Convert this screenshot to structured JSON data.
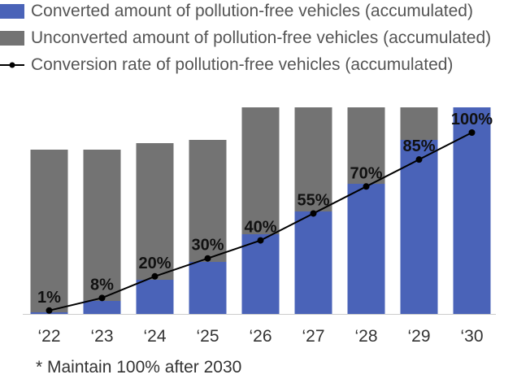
{
  "legend": {
    "converted": "Converted amount of pollution-free vehicles (accumulated)",
    "unconverted": "Unconverted amount of pollution-free vehicles (accumulated)",
    "rate": "Conversion rate of pollution-free vehicles (accumulated)"
  },
  "footnote": "* Maintain 100% after 2030",
  "colors": {
    "converted": "#4a63b8",
    "unconverted": "#737373",
    "line": "#000000"
  },
  "chart_data": {
    "type": "bar",
    "stacked": true,
    "categories": [
      "‘22",
      "‘23",
      "‘24",
      "‘25",
      "‘26",
      "‘27",
      "‘28",
      "‘29",
      "‘30"
    ],
    "series": [
      {
        "name": "Converted amount of pollution-free vehicles (accumulated)",
        "values": [
          2,
          16,
          42,
          64,
          98,
          126,
          160,
          214,
          254
        ]
      },
      {
        "name": "Unconverted amount of pollution-free vehicles (accumulated)",
        "values": [
          200,
          186,
          168,
          150,
          156,
          128,
          94,
          40,
          0
        ]
      }
    ],
    "line_series": {
      "name": "Conversion rate of pollution-free vehicles (accumulated)",
      "values": [
        1,
        8,
        20,
        30,
        40,
        55,
        70,
        85,
        100
      ],
      "labels": [
        "1%",
        "8%",
        "20%",
        "30%",
        "40%",
        "55%",
        "70%",
        "85%",
        "100%"
      ]
    },
    "legend_position": "top-left",
    "grid": false
  }
}
